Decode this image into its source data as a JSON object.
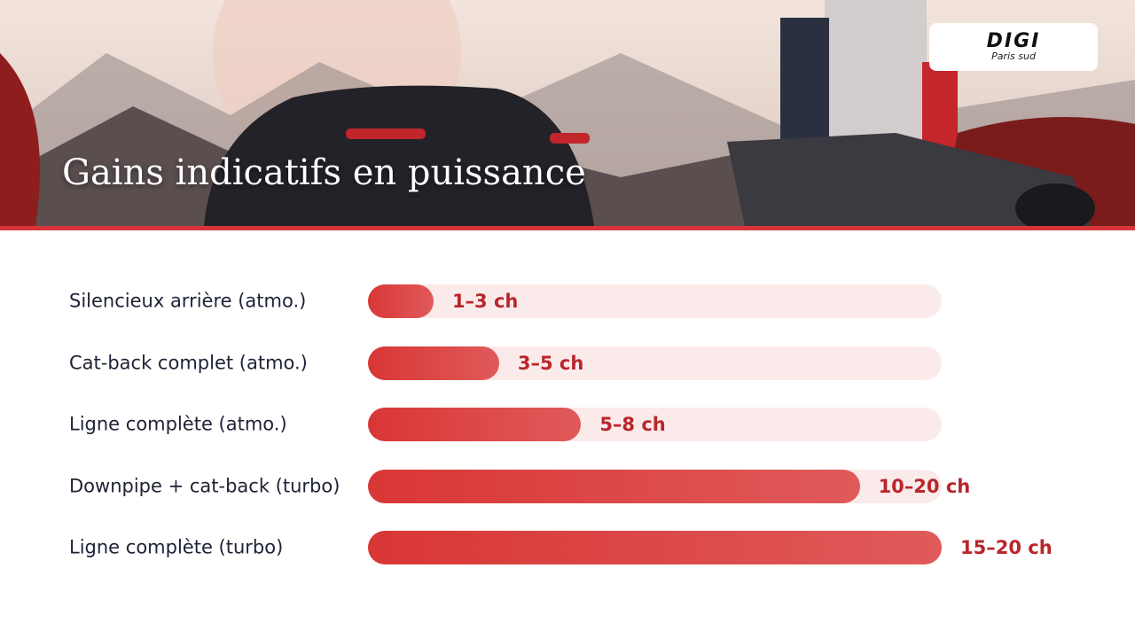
{
  "chart_data": {
    "type": "bar",
    "orientation": "horizontal",
    "title": "Gains indicatifs en puissance",
    "categories": [
      "Silencieux arrière (atmo.)",
      "Cat-back complet (atmo.)",
      "Ligne complète (atmo.)",
      "Downpipe + cat-back (turbo)",
      "Ligne complète (turbo)"
    ],
    "values": [
      2,
      4,
      6.5,
      15,
      17.5
    ],
    "value_labels": [
      "1–3 ch",
      "3–5 ch",
      "5–8 ch",
      "10–20 ch",
      "15–20 ch"
    ],
    "xlim": [
      0,
      17.5
    ],
    "color": "#d93636",
    "track_color": "#fbeaea",
    "label_color": "#b8262b"
  },
  "logo": {
    "name": "DIGI",
    "tagline": "Paris sud"
  }
}
